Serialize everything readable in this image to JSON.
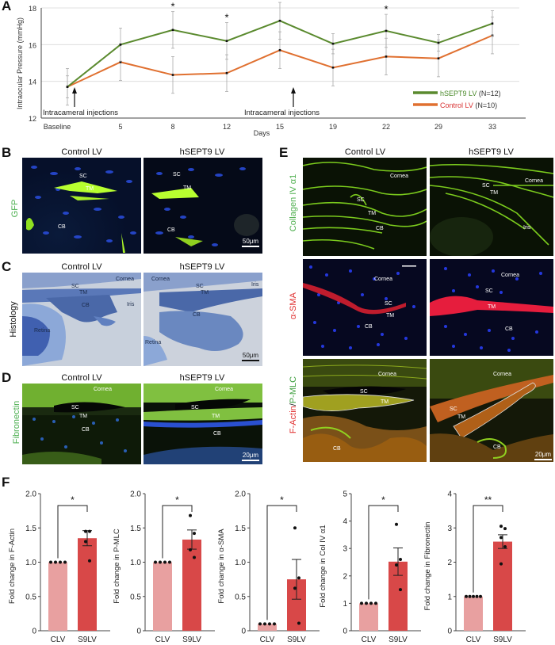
{
  "panels": {
    "A": {
      "letter": "A",
      "chart_data": {
        "type": "line",
        "title": "",
        "xlabel": "Days",
        "ylabel": "Intraocular Pressure (mmHg)",
        "ylim": [
          12,
          18
        ],
        "yticks": [
          "12",
          "14",
          "16",
          "18"
        ],
        "categories": [
          "Baseline",
          "5",
          "8",
          "12",
          "15",
          "19",
          "22",
          "29",
          "33"
        ],
        "series": [
          {
            "name": "hSEPT9 LV",
            "n_label": "(N=12)",
            "color": "#5a8a2e",
            "values": [
              13.7,
              16.0,
              16.8,
              16.2,
              17.3,
              16.05,
              16.75,
              16.1,
              17.15
            ],
            "error": [
              0.6,
              0.9,
              1.0,
              1.0,
              1.0,
              0.55,
              0.9,
              0.45,
              0.7
            ]
          },
          {
            "name": "Control LV",
            "n_label": "(N=10)",
            "color": "#e07030",
            "values": [
              13.7,
              15.05,
              14.35,
              14.45,
              15.7,
              14.75,
              15.35,
              15.25,
              16.5
            ],
            "error": [
              1.0,
              1.0,
              1.0,
              1.0,
              1.0,
              1.0,
              1.0,
              1.0,
              1.0
            ]
          }
        ],
        "significance": [
          {
            "category": "8",
            "label": "*"
          },
          {
            "category": "12",
            "label": "*"
          },
          {
            "category": "15",
            "label": "*"
          },
          {
            "category": "22",
            "label": "*"
          }
        ],
        "annotations": [
          {
            "text": "Intracameral injections",
            "at": "Baseline"
          },
          {
            "text": "Intracameral injections",
            "at": "15"
          }
        ],
        "grid": true,
        "legend_position": "lower right"
      }
    },
    "B": {
      "letter": "B",
      "row_label": "GFP",
      "columns": [
        "Control LV",
        "hSEPT9 LV"
      ],
      "labels_left": [
        "SC",
        "TM",
        "CB"
      ],
      "labels_right": [
        "SC",
        "TM",
        "CB"
      ],
      "scale": "50μm"
    },
    "C": {
      "letter": "C",
      "row_label": "Histology",
      "columns": [
        "Control LV",
        "hSEPT9 LV"
      ],
      "labels_left": [
        "Cornea",
        "SC",
        "TM",
        "Iris",
        "CB",
        "Retina"
      ],
      "labels_right": [
        "Cornea",
        "SC",
        "TM",
        "Iris",
        "CB",
        "Retina"
      ],
      "scale": "50μm"
    },
    "D": {
      "letter": "D",
      "row_label": "Fibronectin",
      "columns": [
        "Control LV",
        "hSEPT9 LV"
      ],
      "labels_left": [
        "Cornea",
        "SC",
        "TM",
        "CB"
      ],
      "labels_right": [
        "Cornea",
        "SC",
        "TM",
        "CB"
      ],
      "scale": "20μm"
    },
    "E": {
      "letter": "E",
      "columns": [
        "Control LV",
        "hSEPT9 LV"
      ],
      "rows": [
        {
          "label": "Collagen IV α1",
          "left": [
            "Cornea",
            "SC",
            "TM",
            "CB"
          ],
          "right": [
            "Cornea",
            "SC",
            "TM",
            "Iris"
          ]
        },
        {
          "label": "α-SMA",
          "left": [
            "Cornea",
            "SC",
            "TM",
            "CB"
          ],
          "right": [
            "Cornea",
            "SC",
            "TM",
            "CB"
          ]
        },
        {
          "label_red": "F-Actin",
          "label_sep": "/",
          "label_green": "P-MLC",
          "left": [
            "Cornea",
            "SC",
            "TM",
            "CB"
          ],
          "right": [
            "Cornea",
            "SC",
            "TM",
            "CB"
          ]
        }
      ],
      "scale": "20μm"
    },
    "F": {
      "letter": "F",
      "chart_data": [
        {
          "type": "bar",
          "ylabel": "Fold change in F-Actin",
          "categories": [
            "CLV",
            "S9LV"
          ],
          "values": [
            1.0,
            1.35
          ],
          "sem": [
            0,
            0.11
          ],
          "points": [
            [
              1,
              1,
              1,
              1
            ],
            [
              1.45,
              1.45,
              1.3,
              1.02
            ]
          ],
          "ylim": [
            0,
            2.0
          ],
          "yticks": [
            "0",
            "0.5",
            "1.0",
            "1.5",
            "2.0"
          ],
          "significance": "*"
        },
        {
          "type": "bar",
          "ylabel": "Fold change in P-MLC",
          "categories": [
            "CLV",
            "S9LV"
          ],
          "values": [
            1.0,
            1.33
          ],
          "sem": [
            0,
            0.14
          ],
          "points": [
            [
              1,
              1,
              1,
              1
            ],
            [
              1.68,
              1.42,
              1.18,
              1.07
            ]
          ],
          "ylim": [
            0,
            2.0
          ],
          "yticks": [
            "0",
            "0.5",
            "1.0",
            "1.5",
            "2.0"
          ],
          "significance": "*"
        },
        {
          "type": "bar",
          "ylabel": "Fold change in α-SMA",
          "categories": [
            "CLV",
            "S9LV"
          ],
          "values": [
            0.1,
            0.75
          ],
          "sem": [
            0,
            0.29
          ],
          "points": [
            [
              0.1,
              0.1,
              0.1,
              0.1
            ],
            [
              1.5,
              0.77,
              0.62,
              0.11
            ]
          ],
          "ylim": [
            0,
            2.0
          ],
          "yticks": [
            "0",
            "0.5",
            "1.0",
            "1.5",
            "2.0"
          ],
          "significance": "*"
        },
        {
          "type": "bar",
          "ylabel": "Fold change in Col IV α1",
          "categories": [
            "CLV",
            "S9LV"
          ],
          "values": [
            1.0,
            2.52
          ],
          "sem": [
            0,
            0.5
          ],
          "points": [
            [
              1,
              1,
              1,
              1
            ],
            [
              3.88,
              2.6,
              2.4,
              1.5
            ]
          ],
          "ylim": [
            0,
            5
          ],
          "yticks": [
            "0",
            "1",
            "2",
            "3",
            "4",
            "5"
          ],
          "significance": "*"
        },
        {
          "type": "bar",
          "ylabel": "Fold change in Fibronectin",
          "categories": [
            "CLV",
            "S9LV"
          ],
          "values": [
            1.0,
            2.6
          ],
          "sem": [
            0,
            0.2
          ],
          "points": [
            [
              1,
              1,
              1,
              1,
              1
            ],
            [
              3.05,
              2.98,
              2.72,
              2.45,
              1.95
            ]
          ],
          "ylim": [
            0,
            4
          ],
          "yticks": [
            "0",
            "1",
            "2",
            "3",
            "4"
          ],
          "significance": "**"
        }
      ],
      "colors": {
        "clv": "#e8a0a0",
        "s9lv": "#d84848"
      }
    }
  }
}
